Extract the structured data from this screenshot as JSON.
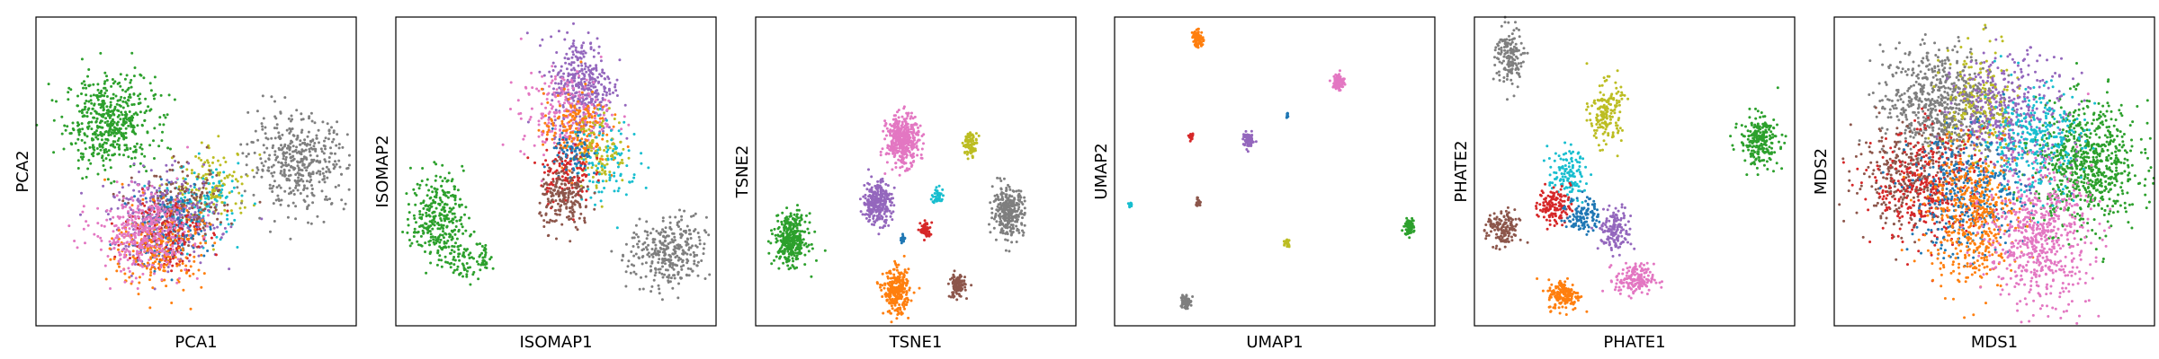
{
  "palette": {
    "blue": "#1f77b4",
    "orange": "#ff7f0e",
    "green": "#2ca02c",
    "red": "#d62728",
    "purple": "#9467bd",
    "brown": "#8c564b",
    "pink": "#e377c2",
    "gray": "#7f7f7f",
    "olive": "#bcbd22",
    "cyan": "#17becf"
  },
  "chart_data": [
    {
      "type": "scatter",
      "xlabel": "PCA1",
      "ylabel": "PCA2",
      "xlim": [
        0,
        1
      ],
      "ylim": [
        0,
        1
      ],
      "ticks_visible": false,
      "clusters": [
        {
          "color": "green",
          "cx": 0.23,
          "cy": 0.66,
          "sx": 0.07,
          "sy": 0.075,
          "n": 500
        },
        {
          "color": "gray",
          "cx": 0.82,
          "cy": 0.53,
          "sx": 0.075,
          "sy": 0.075,
          "n": 420
        },
        {
          "color": "olive",
          "cx": 0.55,
          "cy": 0.45,
          "sx": 0.06,
          "sy": 0.06,
          "n": 150
        },
        {
          "color": "cyan",
          "cx": 0.52,
          "cy": 0.4,
          "sx": 0.06,
          "sy": 0.06,
          "n": 120
        },
        {
          "color": "brown",
          "cx": 0.45,
          "cy": 0.38,
          "sx": 0.07,
          "sy": 0.06,
          "n": 200
        },
        {
          "color": "purple",
          "cx": 0.4,
          "cy": 0.34,
          "sx": 0.085,
          "sy": 0.075,
          "n": 320
        },
        {
          "color": "blue",
          "cx": 0.42,
          "cy": 0.32,
          "sx": 0.06,
          "sy": 0.06,
          "n": 150
        },
        {
          "color": "red",
          "cx": 0.4,
          "cy": 0.3,
          "sx": 0.06,
          "sy": 0.06,
          "n": 150
        },
        {
          "color": "orange",
          "cx": 0.38,
          "cy": 0.25,
          "sx": 0.07,
          "sy": 0.07,
          "n": 230
        },
        {
          "color": "pink",
          "cx": 0.33,
          "cy": 0.3,
          "sx": 0.075,
          "sy": 0.065,
          "n": 350
        }
      ]
    },
    {
      "type": "scatter",
      "xlabel": "ISOMAP1",
      "ylabel": "ISOMAP2",
      "xlim": [
        0,
        1
      ],
      "ylim": [
        0,
        1
      ],
      "ticks_visible": false,
      "clusters": [
        {
          "color": "green",
          "cx": 0.13,
          "cy": 0.35,
          "sx": 0.04,
          "sy": 0.07,
          "n": 300
        },
        {
          "color": "green",
          "cx": 0.22,
          "cy": 0.22,
          "sx": 0.03,
          "sy": 0.04,
          "n": 70
        },
        {
          "color": "green",
          "cx": 0.28,
          "cy": 0.22,
          "sx": 0.01,
          "sy": 0.02,
          "n": 25
        },
        {
          "color": "gray",
          "cx": 0.85,
          "cy": 0.23,
          "sx": 0.06,
          "sy": 0.06,
          "n": 320
        },
        {
          "color": "purple",
          "cx": 0.58,
          "cy": 0.78,
          "sx": 0.05,
          "sy": 0.08,
          "n": 380
        },
        {
          "color": "pink",
          "cx": 0.53,
          "cy": 0.68,
          "sx": 0.07,
          "sy": 0.07,
          "n": 230
        },
        {
          "color": "orange",
          "cx": 0.56,
          "cy": 0.64,
          "sx": 0.05,
          "sy": 0.06,
          "n": 180
        },
        {
          "color": "olive",
          "cx": 0.64,
          "cy": 0.57,
          "sx": 0.04,
          "sy": 0.06,
          "n": 110
        },
        {
          "color": "cyan",
          "cx": 0.66,
          "cy": 0.53,
          "sx": 0.05,
          "sy": 0.07,
          "n": 90
        },
        {
          "color": "red",
          "cx": 0.53,
          "cy": 0.5,
          "sx": 0.04,
          "sy": 0.05,
          "n": 130
        },
        {
          "color": "blue",
          "cx": 0.55,
          "cy": 0.55,
          "sx": 0.03,
          "sy": 0.04,
          "n": 70
        },
        {
          "color": "brown",
          "cx": 0.53,
          "cy": 0.41,
          "sx": 0.04,
          "sy": 0.05,
          "n": 200
        }
      ]
    },
    {
      "type": "scatter",
      "xlabel": "TSNE1",
      "ylabel": "TSNE2",
      "xlim": [
        0,
        1
      ],
      "ylim": [
        0,
        1
      ],
      "ticks_visible": false,
      "clusters": [
        {
          "color": "green",
          "cx": 0.11,
          "cy": 0.28,
          "sx": 0.025,
          "sy": 0.04,
          "n": 350
        },
        {
          "color": "pink",
          "cx": 0.46,
          "cy": 0.6,
          "sx": 0.025,
          "sy": 0.04,
          "n": 420
        },
        {
          "color": "olive",
          "cx": 0.67,
          "cy": 0.59,
          "sx": 0.011,
          "sy": 0.018,
          "n": 90
        },
        {
          "color": "purple",
          "cx": 0.38,
          "cy": 0.4,
          "sx": 0.022,
          "sy": 0.035,
          "n": 300
        },
        {
          "color": "gray",
          "cx": 0.79,
          "cy": 0.37,
          "sx": 0.024,
          "sy": 0.038,
          "n": 320
        },
        {
          "color": "cyan",
          "cx": 0.57,
          "cy": 0.42,
          "sx": 0.01,
          "sy": 0.012,
          "n": 45
        },
        {
          "color": "red",
          "cx": 0.53,
          "cy": 0.31,
          "sx": 0.008,
          "sy": 0.014,
          "n": 60
        },
        {
          "color": "blue",
          "cx": 0.46,
          "cy": 0.28,
          "sx": 0.004,
          "sy": 0.008,
          "n": 20
        },
        {
          "color": "orange",
          "cx": 0.44,
          "cy": 0.11,
          "sx": 0.02,
          "sy": 0.035,
          "n": 280
        },
        {
          "color": "brown",
          "cx": 0.63,
          "cy": 0.13,
          "sx": 0.012,
          "sy": 0.02,
          "n": 110
        }
      ]
    },
    {
      "type": "scatter",
      "xlabel": "UMAP1",
      "ylabel": "UMAP2",
      "xlim": [
        0,
        1
      ],
      "ylim": [
        0,
        1
      ],
      "ticks_visible": false,
      "clusters": [
        {
          "color": "orange",
          "cx": 0.26,
          "cy": 0.93,
          "sx": 0.008,
          "sy": 0.013,
          "n": 90
        },
        {
          "color": "pink",
          "cx": 0.7,
          "cy": 0.79,
          "sx": 0.009,
          "sy": 0.014,
          "n": 100
        },
        {
          "color": "blue",
          "cx": 0.54,
          "cy": 0.68,
          "sx": 0.002,
          "sy": 0.004,
          "n": 10
        },
        {
          "color": "red",
          "cx": 0.24,
          "cy": 0.61,
          "sx": 0.003,
          "sy": 0.005,
          "n": 20
        },
        {
          "color": "purple",
          "cx": 0.42,
          "cy": 0.6,
          "sx": 0.009,
          "sy": 0.012,
          "n": 80
        },
        {
          "color": "brown",
          "cx": 0.26,
          "cy": 0.4,
          "sx": 0.004,
          "sy": 0.006,
          "n": 30
        },
        {
          "color": "cyan",
          "cx": 0.05,
          "cy": 0.39,
          "sx": 0.003,
          "sy": 0.005,
          "n": 15
        },
        {
          "color": "green",
          "cx": 0.92,
          "cy": 0.32,
          "sx": 0.007,
          "sy": 0.012,
          "n": 90
        },
        {
          "color": "olive",
          "cx": 0.54,
          "cy": 0.27,
          "sx": 0.004,
          "sy": 0.007,
          "n": 25
        },
        {
          "color": "gray",
          "cx": 0.22,
          "cy": 0.08,
          "sx": 0.007,
          "sy": 0.012,
          "n": 90
        }
      ]
    },
    {
      "type": "scatter",
      "xlabel": "PHATE1",
      "ylabel": "PHATE2",
      "xlim": [
        0,
        1
      ],
      "ylim": [
        0,
        1
      ],
      "ticks_visible": false,
      "clusters": [
        {
          "color": "gray",
          "cx": 0.11,
          "cy": 0.87,
          "sx": 0.022,
          "sy": 0.05,
          "n": 160
        },
        {
          "color": "olive",
          "cx": 0.41,
          "cy": 0.69,
          "sx": 0.025,
          "sy": 0.05,
          "n": 170
        },
        {
          "color": "green",
          "cx": 0.89,
          "cy": 0.6,
          "sx": 0.03,
          "sy": 0.04,
          "n": 230
        },
        {
          "color": "cyan",
          "cx": 0.29,
          "cy": 0.49,
          "sx": 0.03,
          "sy": 0.04,
          "n": 120
        },
        {
          "color": "red",
          "cx": 0.25,
          "cy": 0.39,
          "sx": 0.025,
          "sy": 0.03,
          "n": 140
        },
        {
          "color": "blue",
          "cx": 0.34,
          "cy": 0.36,
          "sx": 0.025,
          "sy": 0.03,
          "n": 110
        },
        {
          "color": "purple",
          "cx": 0.44,
          "cy": 0.31,
          "sx": 0.025,
          "sy": 0.035,
          "n": 150
        },
        {
          "color": "brown",
          "cx": 0.09,
          "cy": 0.31,
          "sx": 0.025,
          "sy": 0.03,
          "n": 150
        },
        {
          "color": "pink",
          "cx": 0.5,
          "cy": 0.15,
          "sx": 0.03,
          "sy": 0.025,
          "n": 170
        },
        {
          "color": "orange",
          "cx": 0.28,
          "cy": 0.1,
          "sx": 0.025,
          "sy": 0.025,
          "n": 170
        }
      ]
    },
    {
      "type": "scatter",
      "xlabel": "MDS1",
      "ylabel": "MDS2",
      "xlim": [
        0,
        1
      ],
      "ylim": [
        0,
        1
      ],
      "ticks_visible": false,
      "clusters": [
        {
          "color": "gray",
          "cx": 0.33,
          "cy": 0.72,
          "sx": 0.09,
          "sy": 0.09,
          "n": 700
        },
        {
          "color": "green",
          "cx": 0.79,
          "cy": 0.52,
          "sx": 0.08,
          "sy": 0.1,
          "n": 700
        },
        {
          "color": "olive",
          "cx": 0.46,
          "cy": 0.7,
          "sx": 0.06,
          "sy": 0.1,
          "n": 220
        },
        {
          "color": "purple",
          "cx": 0.55,
          "cy": 0.68,
          "sx": 0.09,
          "sy": 0.1,
          "n": 380
        },
        {
          "color": "cyan",
          "cx": 0.62,
          "cy": 0.6,
          "sx": 0.08,
          "sy": 0.09,
          "n": 300
        },
        {
          "color": "brown",
          "cx": 0.22,
          "cy": 0.48,
          "sx": 0.08,
          "sy": 0.08,
          "n": 280
        },
        {
          "color": "red",
          "cx": 0.3,
          "cy": 0.45,
          "sx": 0.09,
          "sy": 0.09,
          "n": 380
        },
        {
          "color": "blue",
          "cx": 0.42,
          "cy": 0.42,
          "sx": 0.09,
          "sy": 0.1,
          "n": 350
        },
        {
          "color": "orange",
          "cx": 0.43,
          "cy": 0.35,
          "sx": 0.07,
          "sy": 0.11,
          "n": 450
        },
        {
          "color": "pink",
          "cx": 0.64,
          "cy": 0.28,
          "sx": 0.08,
          "sy": 0.11,
          "n": 600
        }
      ]
    }
  ]
}
